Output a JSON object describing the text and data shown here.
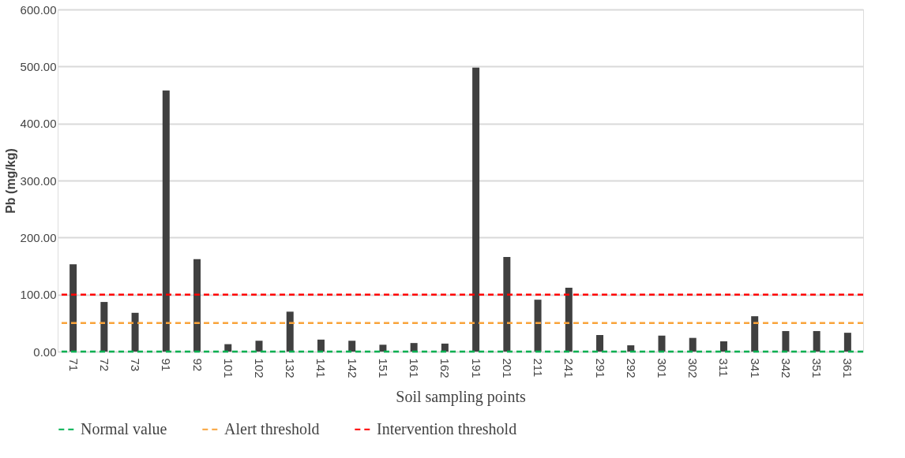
{
  "chart_data": {
    "type": "bar",
    "xlabel": "Soil sampling points",
    "ylabel": "Pb (mg/kg)",
    "categories": [
      "71",
      "72",
      "73",
      "91",
      "92",
      "101",
      "102",
      "132",
      "141",
      "142",
      "151",
      "161",
      "162",
      "191",
      "201",
      "211",
      "241",
      "291",
      "292",
      "301",
      "302",
      "311",
      "341",
      "342",
      "351",
      "361"
    ],
    "values": [
      153,
      87,
      68,
      458,
      162,
      13,
      19,
      70,
      21,
      19,
      12,
      15,
      14,
      498,
      166,
      91,
      112,
      29,
      11,
      28,
      24,
      18,
      62,
      36,
      36,
      33
    ],
    "color": "#404040",
    "ylim": [
      0,
      600
    ],
    "yticks": [
      {
        "value": 0,
        "label": "0.00"
      },
      {
        "value": 100,
        "label": "100.00"
      },
      {
        "value": 200,
        "label": "200.00"
      },
      {
        "value": 300,
        "label": "300.00"
      },
      {
        "value": 400,
        "label": "400.00"
      },
      {
        "value": 500,
        "label": "500.00"
      },
      {
        "value": 600,
        "label": "600.00"
      }
    ],
    "grid": "y",
    "legend": "bottom",
    "ref_lines": [
      {
        "axis": "y",
        "value": 0,
        "label": "Normal value",
        "color": "#00b050",
        "line_style": "dashed"
      },
      {
        "axis": "y",
        "value": 50,
        "label": "Alert threshold",
        "color": "#f9a33a",
        "line_style": "dashed"
      },
      {
        "axis": "y",
        "value": 100,
        "label": "Intervention threshold",
        "color": "#ff0000",
        "line_style": "dashed"
      }
    ]
  }
}
